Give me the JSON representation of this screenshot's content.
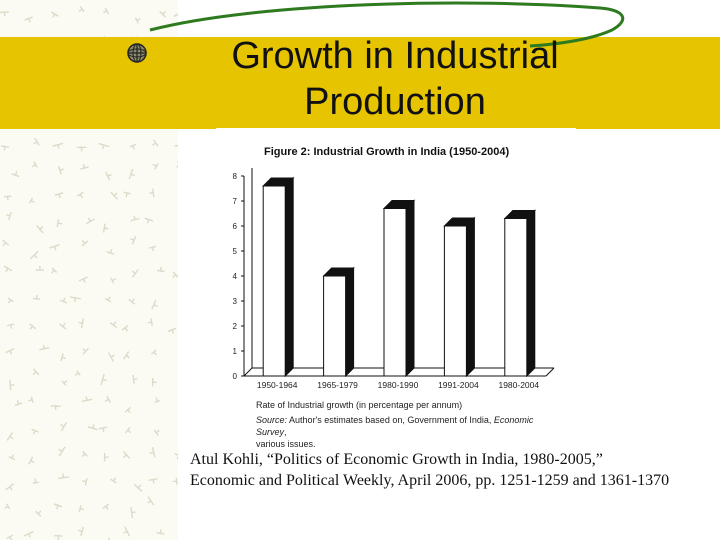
{
  "slide": {
    "title": "Growth in Industrial Production",
    "citation": "Atul Kohli, “Politics of Economic Growth in India, 1980-2005,” Economic and Political Weekly, April 2006, pp. 1251-1259 and 1361-1370"
  },
  "colors": {
    "title_band": "#e6c400",
    "swoosh": "#2e7a1e",
    "bar_fill": "#ffffff",
    "bar_side": "#111111"
  },
  "chart_data": {
    "type": "bar",
    "title": "Figure 2:  Industrial Growth in India (1950-2004)",
    "categories": [
      "1950-1964",
      "1965-1979",
      "1980-1990",
      "1991-2004",
      "1980-2004"
    ],
    "values": [
      7.6,
      4.0,
      6.7,
      6.0,
      6.3
    ],
    "xlabel": "Rate of Industrial growth (in percentage per annum)",
    "ylim": [
      0,
      8
    ],
    "yticks": [
      "0",
      "1",
      "2",
      "3",
      "4",
      "5",
      "6",
      "7",
      "8"
    ],
    "grid": false,
    "source_prefix": "Source:",
    "source_main": "Author's estimates based on, Government of India, ",
    "source_italic": "Economic Survey",
    "source_tail": ",",
    "source_line2": "various issues."
  }
}
